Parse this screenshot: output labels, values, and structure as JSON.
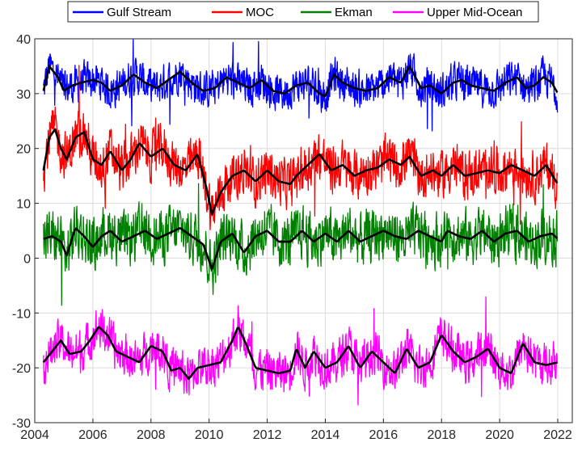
{
  "chart_data": {
    "type": "line",
    "title": "",
    "xlabel": "",
    "ylabel": "",
    "xlim": [
      2004,
      2022.5
    ],
    "ylim": [
      -30,
      40
    ],
    "xticks": [
      2004,
      2006,
      2008,
      2010,
      2012,
      2014,
      2016,
      2018,
      2020,
      2022
    ],
    "yticks": [
      -30,
      -20,
      -10,
      0,
      10,
      20,
      30,
      40
    ],
    "grid": true,
    "legend_position": "top-center",
    "series": [
      {
        "name": "Gulf Stream",
        "color": "#0000ff",
        "smooth": [
          [
            2004.3,
            30.5
          ],
          [
            2004.5,
            35
          ],
          [
            2004.8,
            33
          ],
          [
            2005.0,
            30.5
          ],
          [
            2005.3,
            31.5
          ],
          [
            2005.6,
            32
          ],
          [
            2006.0,
            32.5
          ],
          [
            2006.3,
            32
          ],
          [
            2006.6,
            30.5
          ],
          [
            2007.0,
            31.5
          ],
          [
            2007.4,
            33.5
          ],
          [
            2007.8,
            32
          ],
          [
            2008.2,
            31
          ],
          [
            2008.6,
            32.5
          ],
          [
            2009.0,
            34
          ],
          [
            2009.4,
            32
          ],
          [
            2009.8,
            30.5
          ],
          [
            2010.2,
            31
          ],
          [
            2010.6,
            33
          ],
          [
            2011.0,
            32
          ],
          [
            2011.4,
            31
          ],
          [
            2011.8,
            32.5
          ],
          [
            2012.2,
            30.5
          ],
          [
            2012.6,
            30
          ],
          [
            2013.0,
            31.5
          ],
          [
            2013.4,
            32
          ],
          [
            2013.8,
            30
          ],
          [
            2014.0,
            29.5
          ],
          [
            2014.3,
            33.5
          ],
          [
            2014.6,
            32
          ],
          [
            2015.0,
            31
          ],
          [
            2015.4,
            30.5
          ],
          [
            2015.8,
            31
          ],
          [
            2016.2,
            33
          ],
          [
            2016.6,
            32
          ],
          [
            2016.9,
            35
          ],
          [
            2017.3,
            31
          ],
          [
            2017.6,
            31.5
          ],
          [
            2018.0,
            30
          ],
          [
            2018.4,
            32
          ],
          [
            2018.7,
            32.5
          ],
          [
            2019.0,
            31.5
          ],
          [
            2019.4,
            31
          ],
          [
            2019.8,
            30.5
          ],
          [
            2020.2,
            32
          ],
          [
            2020.6,
            33
          ],
          [
            2020.9,
            31
          ],
          [
            2021.2,
            31.5
          ],
          [
            2021.5,
            33
          ],
          [
            2021.8,
            32
          ],
          [
            2022.0,
            30
          ]
        ],
        "noise_amplitude": 3.5
      },
      {
        "name": "MOC",
        "color": "#ff0000",
        "smooth": [
          [
            2004.3,
            16
          ],
          [
            2004.5,
            22
          ],
          [
            2004.7,
            23.5
          ],
          [
            2004.9,
            20
          ],
          [
            2005.1,
            18
          ],
          [
            2005.4,
            22
          ],
          [
            2005.7,
            23
          ],
          [
            2006.0,
            18
          ],
          [
            2006.3,
            17
          ],
          [
            2006.6,
            19.5
          ],
          [
            2007.0,
            16
          ],
          [
            2007.3,
            18
          ],
          [
            2007.6,
            21
          ],
          [
            2008.0,
            18.5
          ],
          [
            2008.4,
            20
          ],
          [
            2008.8,
            17
          ],
          [
            2009.2,
            16
          ],
          [
            2009.6,
            19
          ],
          [
            2009.9,
            13
          ],
          [
            2010.1,
            8
          ],
          [
            2010.4,
            12
          ],
          [
            2010.8,
            15
          ],
          [
            2011.2,
            16
          ],
          [
            2011.6,
            14
          ],
          [
            2012.0,
            16
          ],
          [
            2012.4,
            14
          ],
          [
            2012.8,
            13.5
          ],
          [
            2013.0,
            15
          ],
          [
            2013.4,
            17
          ],
          [
            2013.8,
            19
          ],
          [
            2014.2,
            16
          ],
          [
            2014.6,
            17
          ],
          [
            2015.0,
            15
          ],
          [
            2015.4,
            16
          ],
          [
            2015.8,
            16.5
          ],
          [
            2016.2,
            18
          ],
          [
            2016.6,
            17
          ],
          [
            2016.9,
            18.5
          ],
          [
            2017.3,
            15
          ],
          [
            2017.7,
            16
          ],
          [
            2018.0,
            15
          ],
          [
            2018.4,
            17
          ],
          [
            2018.8,
            15
          ],
          [
            2019.2,
            15.5
          ],
          [
            2019.6,
            16
          ],
          [
            2020.0,
            15.5
          ],
          [
            2020.4,
            17
          ],
          [
            2020.8,
            16
          ],
          [
            2021.2,
            15
          ],
          [
            2021.6,
            17
          ],
          [
            2022.0,
            13.5
          ]
        ],
        "noise_amplitude": 4.5
      },
      {
        "name": "Ekman",
        "color": "#008000",
        "smooth": [
          [
            2004.3,
            3.5
          ],
          [
            2004.6,
            4
          ],
          [
            2004.9,
            3
          ],
          [
            2005.1,
            0.5
          ],
          [
            2005.4,
            5.5
          ],
          [
            2005.7,
            4
          ],
          [
            2006.0,
            2
          ],
          [
            2006.3,
            4
          ],
          [
            2006.6,
            5
          ],
          [
            2007.0,
            3
          ],
          [
            2007.4,
            4
          ],
          [
            2007.8,
            5
          ],
          [
            2008.2,
            3.5
          ],
          [
            2008.6,
            4.5
          ],
          [
            2009.0,
            5.5
          ],
          [
            2009.4,
            4
          ],
          [
            2009.8,
            2.5
          ],
          [
            2010.1,
            -2
          ],
          [
            2010.4,
            3
          ],
          [
            2010.8,
            4.5
          ],
          [
            2011.2,
            1
          ],
          [
            2011.6,
            4
          ],
          [
            2012.0,
            5
          ],
          [
            2012.4,
            3
          ],
          [
            2012.8,
            3
          ],
          [
            2013.2,
            5
          ],
          [
            2013.6,
            3
          ],
          [
            2014.0,
            4.5
          ],
          [
            2014.4,
            3
          ],
          [
            2014.8,
            5
          ],
          [
            2015.2,
            3
          ],
          [
            2015.6,
            4
          ],
          [
            2016.0,
            5
          ],
          [
            2016.4,
            4
          ],
          [
            2016.8,
            3.5
          ],
          [
            2017.2,
            5
          ],
          [
            2017.6,
            4
          ],
          [
            2018.0,
            3
          ],
          [
            2018.2,
            5
          ],
          [
            2018.6,
            4
          ],
          [
            2019.0,
            3.5
          ],
          [
            2019.4,
            5
          ],
          [
            2019.8,
            3
          ],
          [
            2020.2,
            4.5
          ],
          [
            2020.6,
            5
          ],
          [
            2021.0,
            3
          ],
          [
            2021.4,
            4
          ],
          [
            2021.8,
            4.5
          ],
          [
            2022.0,
            3.5
          ]
        ],
        "noise_amplitude": 5
      },
      {
        "name": "Upper Mid-Ocean",
        "color": "#ff00ff",
        "smooth": [
          [
            2004.3,
            -19
          ],
          [
            2004.6,
            -17
          ],
          [
            2004.9,
            -15
          ],
          [
            2005.2,
            -17.5
          ],
          [
            2005.6,
            -17
          ],
          [
            2005.9,
            -15
          ],
          [
            2006.2,
            -12.5
          ],
          [
            2006.5,
            -14
          ],
          [
            2006.8,
            -17
          ],
          [
            2007.2,
            -18
          ],
          [
            2007.6,
            -19
          ],
          [
            2008.0,
            -16
          ],
          [
            2008.4,
            -17
          ],
          [
            2008.7,
            -20.5
          ],
          [
            2009.0,
            -20
          ],
          [
            2009.3,
            -22
          ],
          [
            2009.6,
            -20
          ],
          [
            2010.0,
            -19.5
          ],
          [
            2010.4,
            -19
          ],
          [
            2010.8,
            -15
          ],
          [
            2011.0,
            -12.5
          ],
          [
            2011.3,
            -16
          ],
          [
            2011.6,
            -20
          ],
          [
            2012.0,
            -20.5
          ],
          [
            2012.4,
            -21
          ],
          [
            2012.8,
            -20.5
          ],
          [
            2013.0,
            -16.5
          ],
          [
            2013.3,
            -20
          ],
          [
            2013.6,
            -17
          ],
          [
            2014.0,
            -20
          ],
          [
            2014.4,
            -19
          ],
          [
            2014.8,
            -16
          ],
          [
            2015.2,
            -20
          ],
          [
            2015.6,
            -17
          ],
          [
            2016.0,
            -19
          ],
          [
            2016.4,
            -21
          ],
          [
            2016.8,
            -16.5
          ],
          [
            2017.2,
            -20
          ],
          [
            2017.6,
            -19
          ],
          [
            2018.0,
            -14
          ],
          [
            2018.4,
            -17
          ],
          [
            2018.8,
            -19
          ],
          [
            2019.2,
            -18
          ],
          [
            2019.6,
            -16.5
          ],
          [
            2020.0,
            -20
          ],
          [
            2020.4,
            -21
          ],
          [
            2020.8,
            -15.5
          ],
          [
            2021.2,
            -19
          ],
          [
            2021.6,
            -19.5
          ],
          [
            2022.0,
            -19
          ]
        ],
        "noise_amplitude": 4
      }
    ]
  }
}
